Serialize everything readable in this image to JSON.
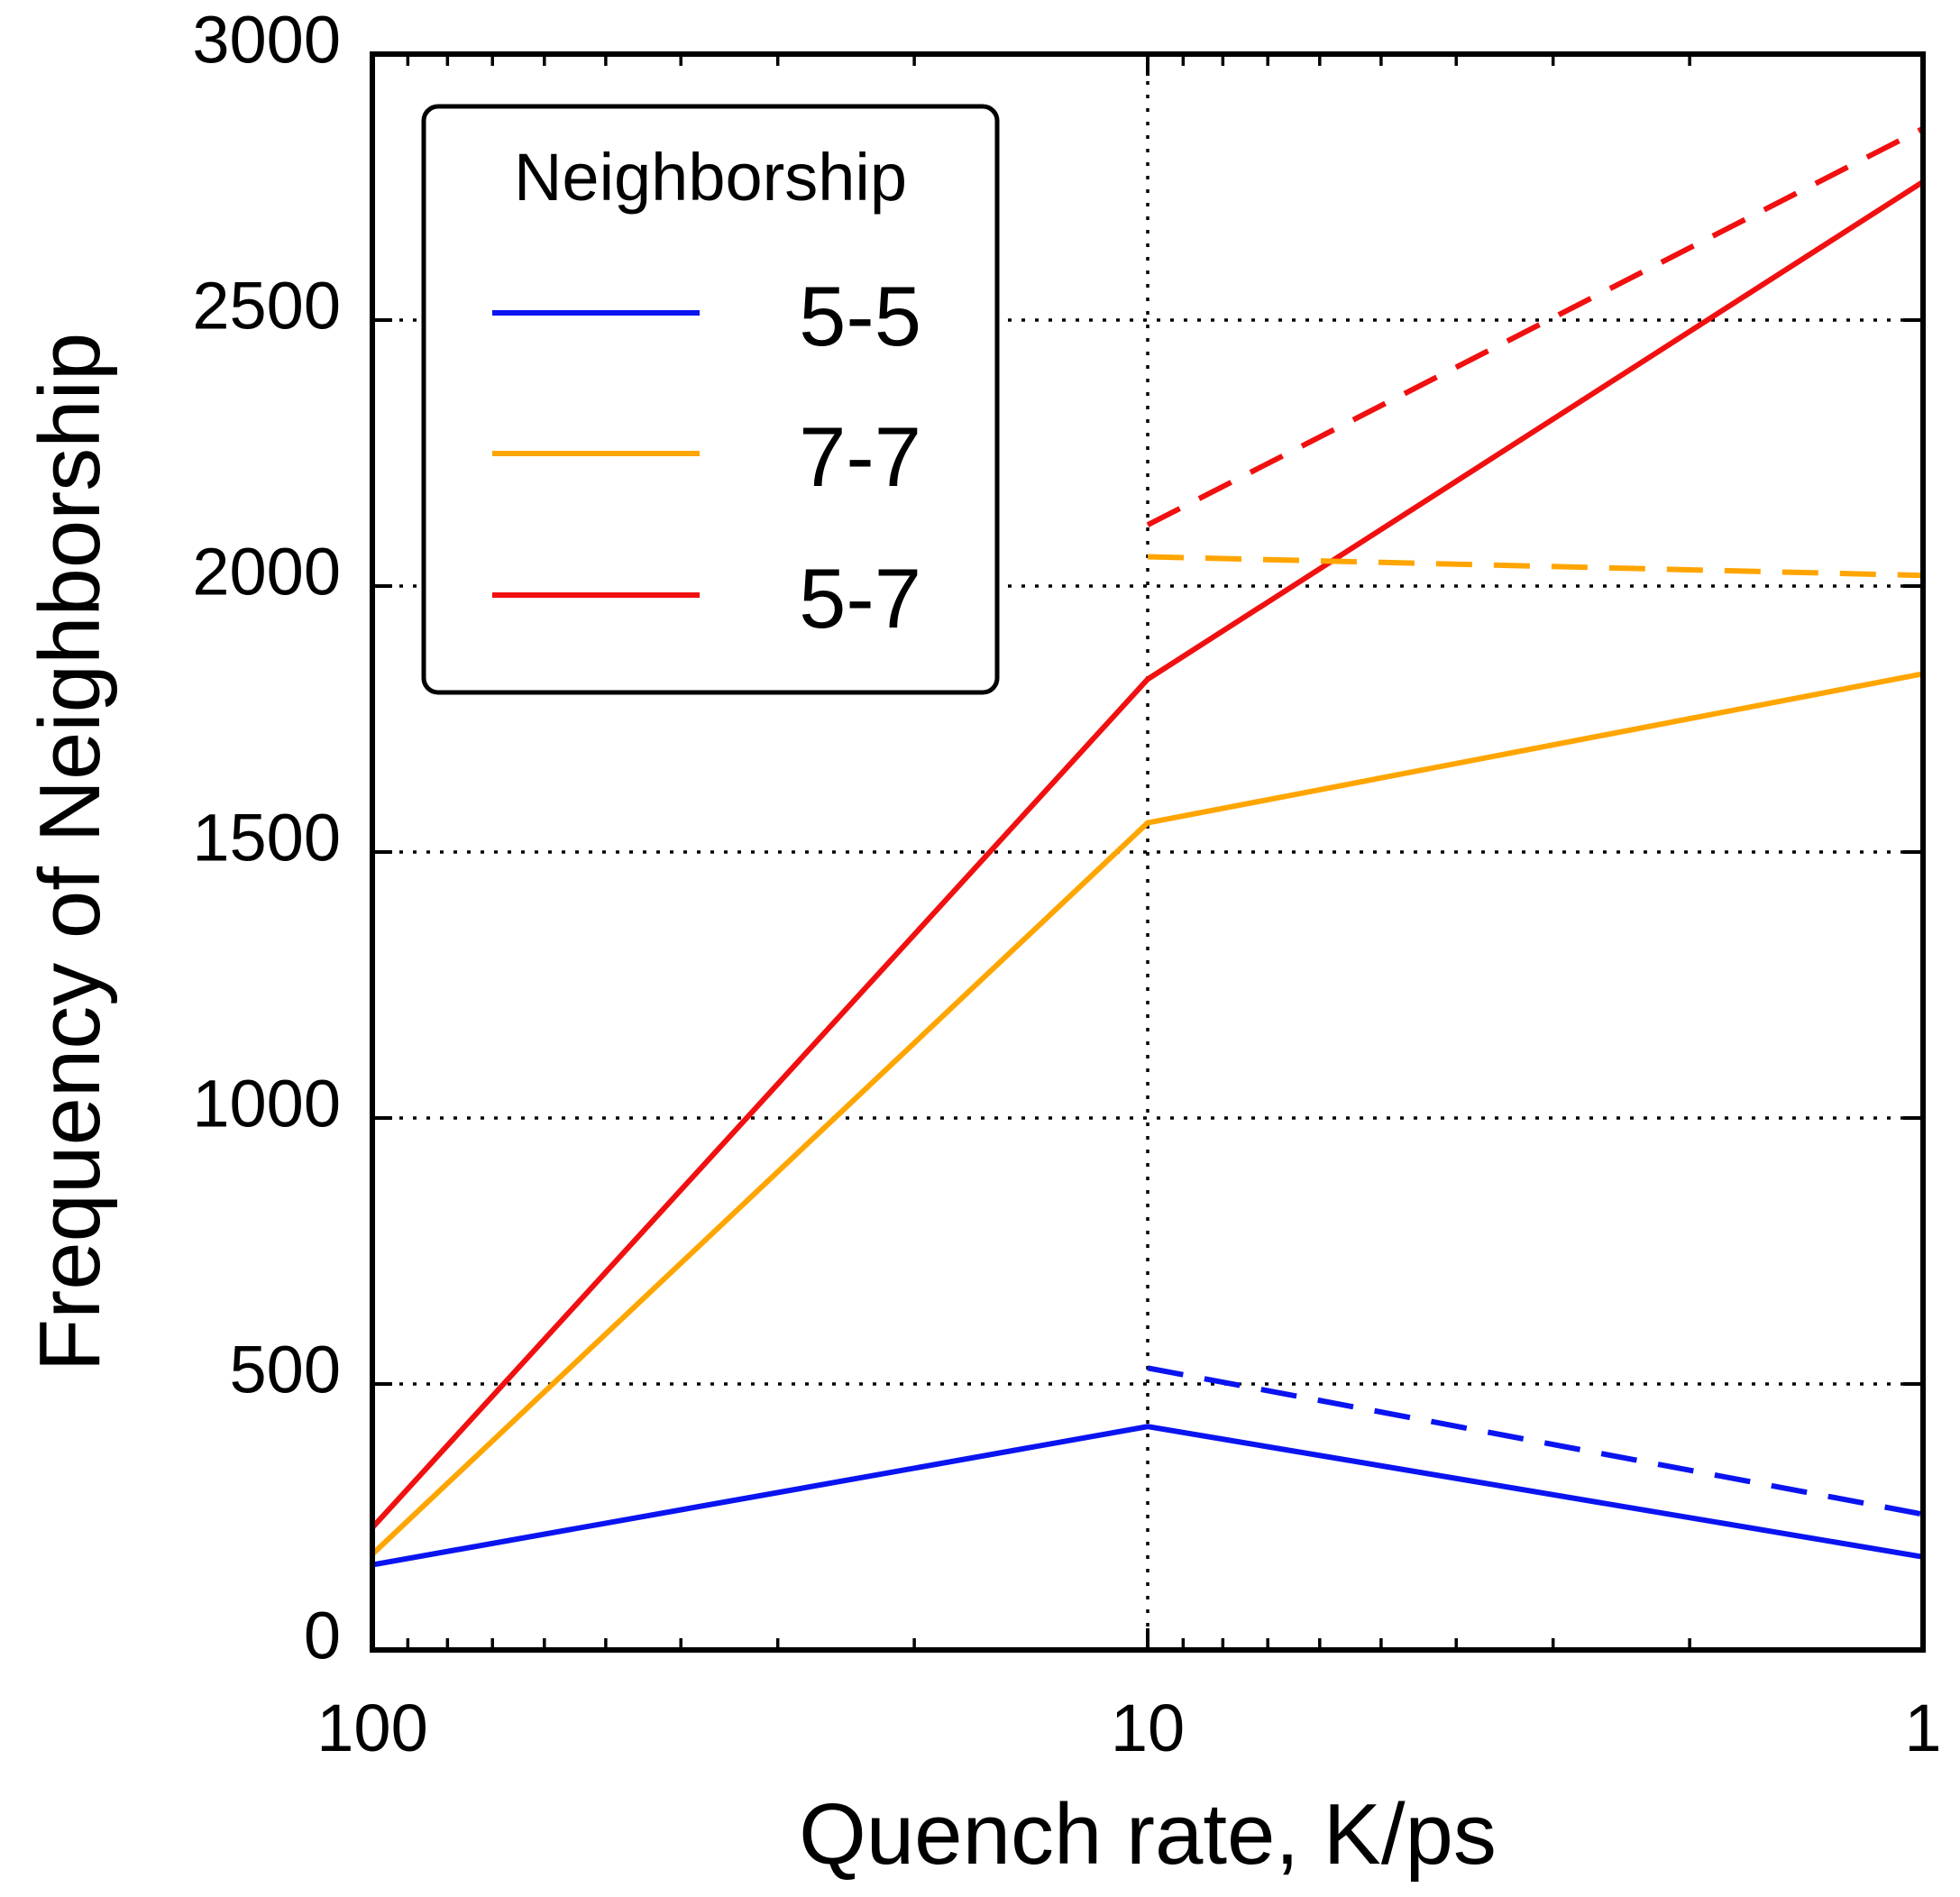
{
  "chart_data": {
    "type": "line",
    "xlabel": "Quench rate, K/ps",
    "ylabel": "Frequency of Neighborship",
    "xscale": "log",
    "x_reversed": true,
    "xlim": [
      100,
      1
    ],
    "ylim": [
      0,
      3000
    ],
    "xticks": [
      100,
      10,
      1
    ],
    "xtick_labels": [
      "100",
      "10",
      "1"
    ],
    "yticks": [
      0,
      500,
      1000,
      1500,
      2000,
      2500,
      3000
    ],
    "ytick_labels": [
      "0",
      "500",
      "1000",
      "1500",
      "2000",
      "2500",
      "3000"
    ],
    "grid": true,
    "legend": {
      "title": "Neighborship",
      "placement": "top-left",
      "entries": [
        "5-5",
        "7-7",
        "5-7"
      ]
    },
    "series": [
      {
        "name": "5-5",
        "color": "#0a14f0",
        "style": "solid",
        "x": [
          100,
          10,
          1
        ],
        "y": [
          160,
          420,
          175
        ]
      },
      {
        "name": "7-7",
        "color": "#ffa500",
        "style": "solid",
        "x": [
          100,
          10,
          1
        ],
        "y": [
          180,
          1555,
          1835
        ]
      },
      {
        "name": "5-7",
        "color": "#f01010",
        "style": "solid",
        "x": [
          100,
          10,
          1
        ],
        "y": [
          230,
          1825,
          2760
        ]
      },
      {
        "name": "5-5",
        "color": "#0a14f0",
        "style": "dashed",
        "x": [
          10,
          1
        ],
        "y": [
          530,
          255
        ]
      },
      {
        "name": "7-7",
        "color": "#ffa500",
        "style": "dashed",
        "x": [
          10,
          1
        ],
        "y": [
          2055,
          2020
        ]
      },
      {
        "name": "5-7",
        "color": "#f01010",
        "style": "dashed",
        "x": [
          10,
          1
        ],
        "y": [
          2115,
          2860
        ]
      }
    ]
  }
}
